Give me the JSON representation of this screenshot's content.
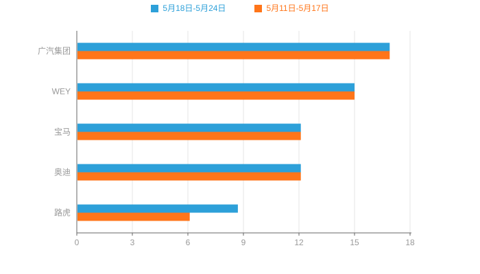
{
  "chart_data": {
    "type": "bar",
    "orientation": "horizontal",
    "title": "",
    "categories": [
      "广汽集团",
      "WEY",
      "宝马",
      "奥迪",
      "路虎"
    ],
    "series": [
      {
        "name": "5月18日-5月24日",
        "color": "#2DA0D9",
        "values": [
          16.9,
          15.0,
          12.1,
          12.1,
          8.7
        ]
      },
      {
        "name": "5月11日-5月17日",
        "color": "#FF7519",
        "values": [
          16.9,
          15.0,
          12.1,
          12.1,
          6.1
        ]
      }
    ],
    "xlim": [
      0,
      18
    ],
    "x_ticks": [
      0,
      3,
      6,
      9,
      12,
      15,
      18
    ],
    "grid": true,
    "legend_position": "top"
  },
  "colors": {
    "background": "#ffffff",
    "axis": "#666666",
    "grid": "#e4e4e4",
    "tick_label": "#999999",
    "category_label": "#999999"
  }
}
